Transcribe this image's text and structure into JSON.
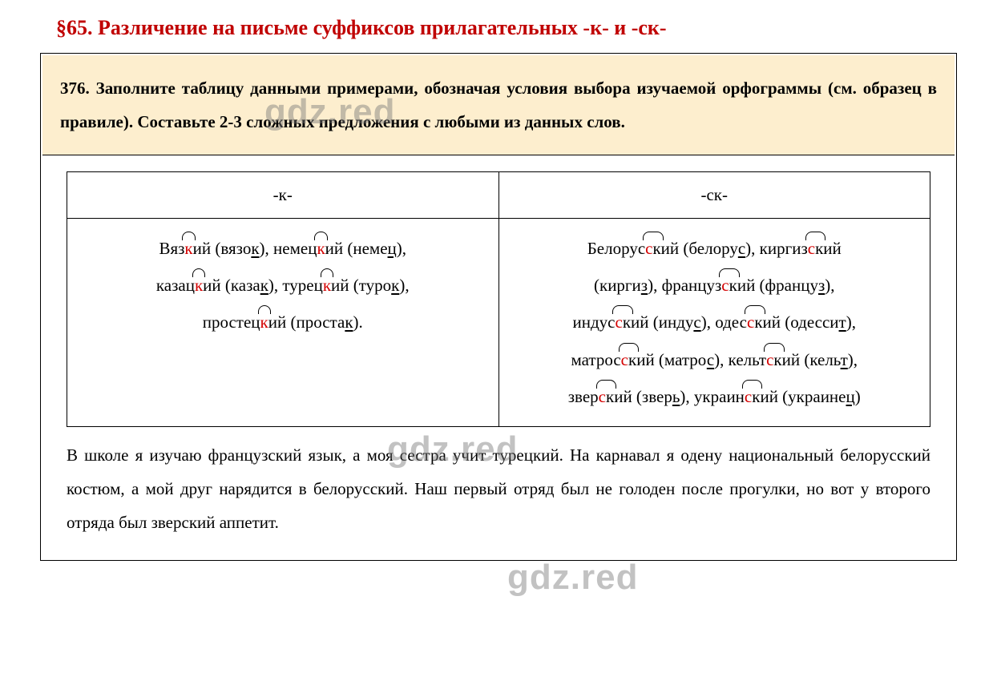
{
  "heading": "§65. Различение на письме суффиксов прилагательных -к- и -ск-",
  "task_number": "376.",
  "task_text": "Заполните таблицу данными примерами, обозначая условия выбора изучаемой орфограммы (см. образец в правиле). Составьте 2-3 сложных предложения с любыми из данных слов.",
  "table": {
    "headers": {
      "left": "-к-",
      "right": "-ск-"
    },
    "left_column": [
      {
        "pre": "Вяз",
        "suf": "к",
        "post": "ий (вязо",
        "base_end": "к",
        "tail": "), немец",
        "suf2": "к",
        "post2": "ий (неме",
        "base_end2": "ц",
        "tail2": "),"
      },
      {
        "pre": "казац",
        "suf": "к",
        "post": "ий (каза",
        "base_end": "к",
        "tail": "), турец",
        "suf2": "к",
        "post2": "ий (туро",
        "base_end2": "к",
        "tail2": "),"
      },
      {
        "pre": "простец",
        "suf": "к",
        "post": "ий (проста",
        "base_end": "к",
        "tail": ").",
        "suf2": "",
        "post2": "",
        "base_end2": "",
        "tail2": ""
      }
    ],
    "right_column": [
      {
        "pre": "Белорус",
        "suf": "ск",
        "post": "ий (белору",
        "base_end": "с",
        "tail": "), киргиз",
        "suf2": "ск",
        "post2": "ий",
        "base_end2": "",
        "tail2": ""
      },
      {
        "pre": "(кирги",
        "base0": "з",
        "mid": "), француз",
        "suf": "ск",
        "post": "ий (францу",
        "base_end": "з",
        "tail": "),",
        "suf2": "",
        "post2": "",
        "base_end2": "",
        "tail2": ""
      },
      {
        "pre": "индус",
        "suf": "ск",
        "post": "ий (инду",
        "base_end": "с",
        "tail": "), одес",
        "suf2": "ск",
        "post2": "ий (одесси",
        "base_end2": "т",
        "tail2": "),"
      },
      {
        "pre": "матрос",
        "suf": "ск",
        "post": "ий (матро",
        "base_end": "с",
        "tail": "), кельт",
        "suf2": "ск",
        "post2": "ий (кель",
        "base_end2": "т",
        "tail2": "),"
      },
      {
        "pre": "звер",
        "suf": "ск",
        "post": "ий (звер",
        "base_end": "ь",
        "tail": "), украин",
        "suf2": "ск",
        "post2": "ий (украине",
        "base_end2": "ц",
        "tail2": ")"
      }
    ]
  },
  "sentences": "В школе я изучаю французский язык, а моя сестра учит турецкий. На карнавал я одену национальный белорусский костюм, а мой друг нарядится в белорусский. Наш первый отряд был не голоден после прогулки, но вот у второго отряда был зверский аппетит.",
  "watermark": "gdz.red",
  "colors": {
    "heading": "#c00000",
    "task_bg": "#fdeece",
    "highlight": "#d40000",
    "border": "#000000",
    "watermark": "rgba(120,120,120,0.45)"
  },
  "typography": {
    "heading_fontsize": 26,
    "body_fontsize": 21,
    "font_family": "Times New Roman"
  }
}
